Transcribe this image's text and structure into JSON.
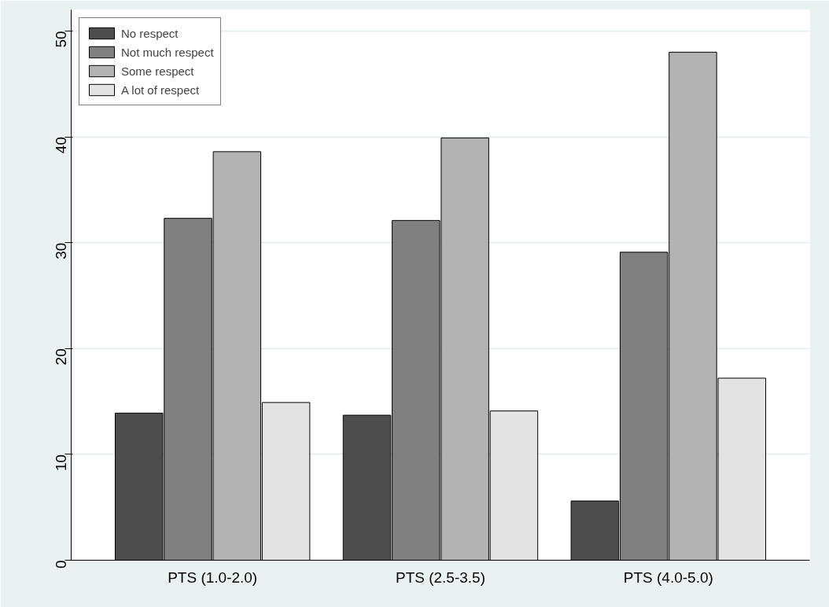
{
  "chart_data": {
    "type": "bar",
    "categories": [
      "PTS (1.0-2.0)",
      "PTS (2.5-3.5)",
      "PTS (4.0-5.0)"
    ],
    "series": [
      {
        "name": "No respect",
        "color": "#4d4d4d",
        "values": [
          13.9,
          13.7,
          5.6
        ]
      },
      {
        "name": "Not much respect",
        "color": "#808080",
        "values": [
          32.3,
          32.1,
          29.1
        ]
      },
      {
        "name": "Some respect",
        "color": "#b3b3b3",
        "values": [
          38.6,
          39.9,
          48.0
        ]
      },
      {
        "name": "A lot of respect",
        "color": "#e3e3e3",
        "values": [
          14.9,
          14.1,
          17.2
        ]
      }
    ],
    "ylim": [
      0,
      52
    ],
    "yticks": [
      0,
      10,
      20,
      30,
      40,
      50
    ],
    "grid": "y",
    "legend": "top left"
  }
}
